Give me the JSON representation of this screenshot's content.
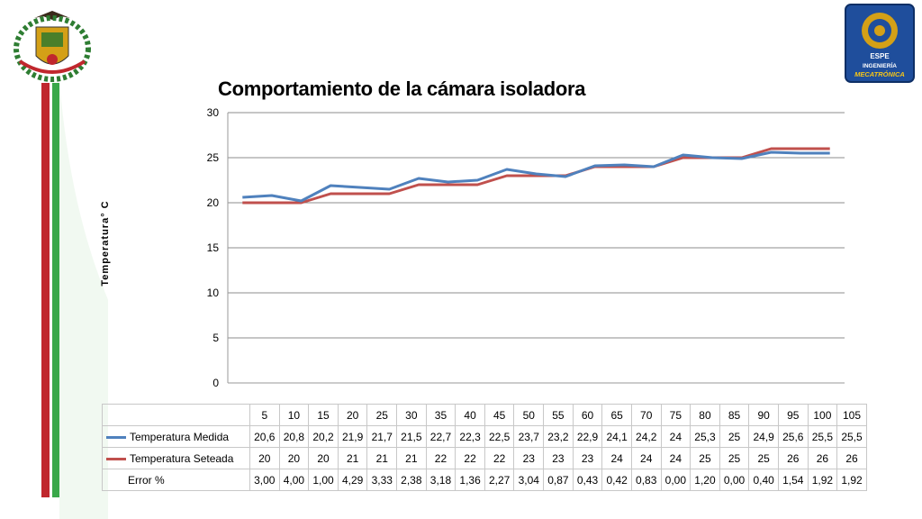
{
  "chart_data": {
    "type": "line",
    "title": "Comportamiento de la cámara isoladora",
    "ylabel": "Temperatura° C",
    "xlabel": "",
    "ylim": [
      0,
      30
    ],
    "yticks": [
      "0",
      "5",
      "10",
      "15",
      "20",
      "25",
      "30"
    ],
    "grid": true,
    "x": [
      "5",
      "10",
      "15",
      "20",
      "25",
      "30",
      "35",
      "40",
      "45",
      "50",
      "55",
      "60",
      "65",
      "70",
      "75",
      "80",
      "85",
      "90",
      "95",
      "100",
      "105"
    ],
    "series": [
      {
        "name": "Temperatura Medida",
        "color": "#4f81bd",
        "values": [
          20.6,
          20.8,
          20.2,
          21.9,
          21.7,
          21.5,
          22.7,
          22.3,
          22.5,
          23.7,
          23.2,
          22.9,
          24.1,
          24.2,
          24,
          25.3,
          25,
          24.9,
          25.6,
          25.5,
          25.5
        ],
        "labels": [
          "20,6",
          "20,8",
          "20,2",
          "21,9",
          "21,7",
          "21,5",
          "22,7",
          "22,3",
          "22,5",
          "23,7",
          "23,2",
          "22,9",
          "24,1",
          "24,2",
          "24",
          "25,3",
          "25",
          "24,9",
          "25,6",
          "25,5",
          "25,5"
        ]
      },
      {
        "name": "Temperatura Seteada",
        "color": "#c0504d",
        "values": [
          20,
          20,
          20,
          21,
          21,
          21,
          22,
          22,
          22,
          23,
          23,
          23,
          24,
          24,
          24,
          25,
          25,
          25,
          26,
          26,
          26
        ],
        "labels": [
          "20",
          "20",
          "20",
          "21",
          "21",
          "21",
          "22",
          "22",
          "22",
          "23",
          "23",
          "23",
          "24",
          "24",
          "24",
          "25",
          "25",
          "25",
          "26",
          "26",
          "26"
        ]
      }
    ],
    "error_row": {
      "name": "Error %",
      "labels": [
        "3,00",
        "4,00",
        "1,00",
        "4,29",
        "3,33",
        "2,38",
        "3,18",
        "1,36",
        "2,27",
        "3,04",
        "0,87",
        "0,43",
        "0,42",
        "0,83",
        "0,00",
        "1,20",
        "0,00",
        "0,40",
        "1,54",
        "1,92",
        "1,92"
      ]
    }
  },
  "decor": {
    "left_logo": "coat-of-arms",
    "right_logo": "espe-mecatronica-logo",
    "right_logo_lines": [
      "ESPE",
      "INGENIERÍA",
      "MECATRÓNICA"
    ],
    "stripe_colors": [
      "#c0272d",
      "#ffffff",
      "#3aa84a"
    ]
  }
}
